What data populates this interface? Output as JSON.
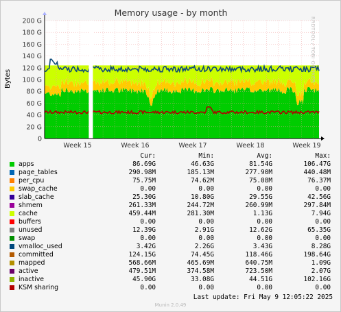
{
  "chart_data": {
    "type": "area",
    "title": "Memory usage - by month",
    "ylabel": "Bytes",
    "ylim": [
      0,
      200
    ],
    "yticks": [
      "0",
      "20 G",
      "40 G",
      "60 G",
      "80 G",
      "100 G",
      "120 G",
      "140 G",
      "160 G",
      "180 G",
      "200 G"
    ],
    "xticks": [
      "Week 15",
      "Week 16",
      "Week 17",
      "Week 18",
      "Week 19"
    ],
    "grid": true,
    "series": [
      {
        "name": "apps",
        "color": "#00cc00",
        "level": 81.5
      },
      {
        "name": "page_tables",
        "color": "#0066b3",
        "level": 0.3
      },
      {
        "name": "per_cpu",
        "color": "#ff8000",
        "level": 0.1
      },
      {
        "name": "slab_cache",
        "color": "#ffcc00",
        "level": 29.6
      },
      {
        "name": "shmem",
        "color": "#330099",
        "level": 0.3
      },
      {
        "name": "cache",
        "color": "#990099",
        "level": 1.1
      },
      {
        "name": "unused",
        "color": "#ccff00",
        "level": 12.6
      },
      {
        "name": "committed",
        "color": "#0d4a7a",
        "level": 118.5
      },
      {
        "name": "inactive",
        "color": "#b00000",
        "level": 44.5
      }
    ]
  },
  "legend": {
    "headers": [
      "Cur:",
      "Min:",
      "Avg:",
      "Max:"
    ],
    "rows": [
      {
        "name": "apps",
        "color": "#00cc00",
        "cur": "86.69G",
        "min": "46.63G",
        "avg": "81.54G",
        "max": "106.47G"
      },
      {
        "name": "page_tables",
        "color": "#0066b3",
        "cur": "290.98M",
        "min": "185.13M",
        "avg": "277.90M",
        "max": "440.48M"
      },
      {
        "name": "per_cpu",
        "color": "#ff8000",
        "cur": "75.75M",
        "min": "74.62M",
        "avg": "75.08M",
        "max": "76.37M"
      },
      {
        "name": "swap_cache",
        "color": "#ffcc00",
        "cur": "0.00",
        "min": "0.00",
        "avg": "0.00",
        "max": "0.00"
      },
      {
        "name": "slab_cache",
        "color": "#330099",
        "cur": "25.30G",
        "min": "10.80G",
        "avg": "29.55G",
        "max": "42.56G"
      },
      {
        "name": "shmem",
        "color": "#990099",
        "cur": "261.33M",
        "min": "244.72M",
        "avg": "260.99M",
        "max": "297.84M"
      },
      {
        "name": "cache",
        "color": "#ccff00",
        "cur": "459.44M",
        "min": "281.30M",
        "avg": "1.13G",
        "max": "7.94G"
      },
      {
        "name": "buffers",
        "color": "#ff0000",
        "cur": "0.00",
        "min": "0.00",
        "avg": "0.00",
        "max": "0.00"
      },
      {
        "name": "unused",
        "color": "#808080",
        "cur": "12.39G",
        "min": "2.91G",
        "avg": "12.62G",
        "max": "65.35G"
      },
      {
        "name": "swap",
        "color": "#008f00",
        "cur": "0.00",
        "min": "0.00",
        "avg": "0.00",
        "max": "0.00"
      },
      {
        "name": "vmalloc_used",
        "color": "#00487d",
        "cur": "3.42G",
        "min": "2.26G",
        "avg": "3.43G",
        "max": "8.28G"
      },
      {
        "name": "committed",
        "color": "#b35a00",
        "cur": "124.15G",
        "min": "74.45G",
        "avg": "118.46G",
        "max": "198.64G"
      },
      {
        "name": "mapped",
        "color": "#b38f00",
        "cur": "568.66M",
        "min": "465.69M",
        "avg": "640.75M",
        "max": "1.09G"
      },
      {
        "name": "active",
        "color": "#6b006b",
        "cur": "479.51M",
        "min": "374.58M",
        "avg": "723.50M",
        "max": "2.07G"
      },
      {
        "name": "inactive",
        "color": "#8fb300",
        "cur": "45.90G",
        "min": "33.08G",
        "avg": "44.51G",
        "max": "102.16G"
      },
      {
        "name": "KSM sharing",
        "color": "#b30000",
        "cur": "0.00",
        "min": "0.00",
        "avg": "0.00",
        "max": "0.00"
      }
    ]
  },
  "last_update": "Last update: Fri May  9 12:05:22 2025",
  "footer": "Munin 2.0.49",
  "side_label": "RRDTOOL / TOBI OETIKER"
}
